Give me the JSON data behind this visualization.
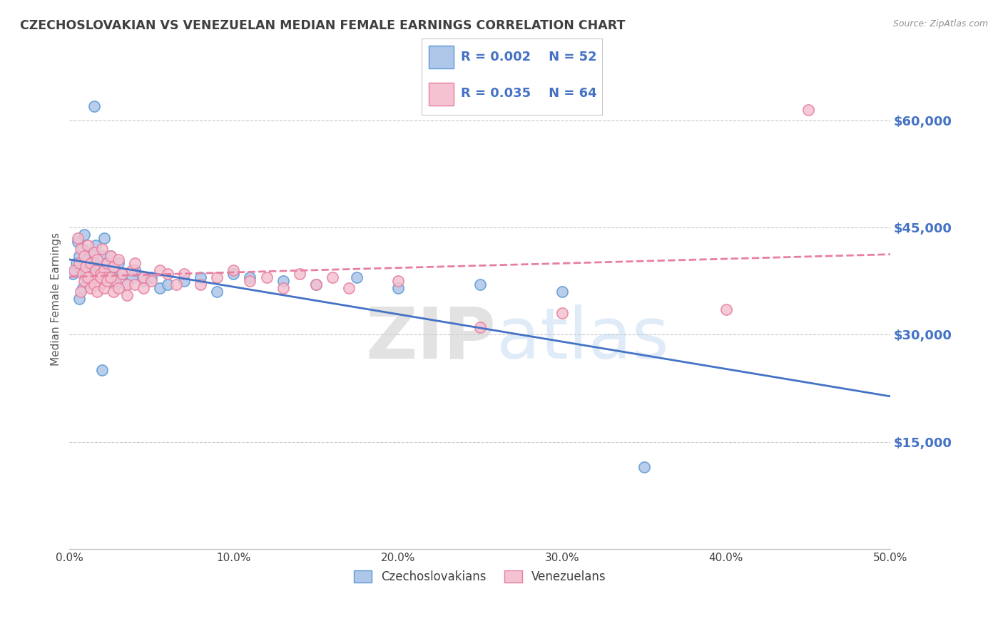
{
  "title": "CZECHOSLOVAKIAN VS VENEZUELAN MEDIAN FEMALE EARNINGS CORRELATION CHART",
  "source_text": "Source: ZipAtlas.com",
  "ylabel": "Median Female Earnings",
  "xlim": [
    0.0,
    0.5
  ],
  "ylim": [
    0,
    70000
  ],
  "yticks": [
    0,
    15000,
    30000,
    45000,
    60000
  ],
  "ytick_labels": [
    "",
    "$15,000",
    "$30,000",
    "$45,000",
    "$60,000"
  ],
  "xtick_labels": [
    "0.0%",
    "10.0%",
    "20.0%",
    "30.0%",
    "40.0%",
    "50.0%"
  ],
  "xticks": [
    0.0,
    0.1,
    0.2,
    0.3,
    0.4,
    0.5
  ],
  "blue_color": "#AEC6E8",
  "blue_edge_color": "#5B9BD5",
  "pink_color": "#F4C2D0",
  "pink_edge_color": "#E87FA0",
  "blue_line_color": "#4472C4",
  "pink_line_color": "#E87FA0",
  "legend_text_color": "#4472C4",
  "title_color": "#404040",
  "axis_label_color": "#595959",
  "tick_color": "#4472C4",
  "watermark_zip": "ZIP",
  "watermark_atlas": "atlas",
  "R_blue": 0.002,
  "N_blue": 52,
  "R_pink": 0.035,
  "N_pink": 64,
  "blue_scatter_x": [
    0.002,
    0.004,
    0.005,
    0.006,
    0.007,
    0.008,
    0.009,
    0.01,
    0.011,
    0.012,
    0.013,
    0.014,
    0.015,
    0.016,
    0.017,
    0.018,
    0.019,
    0.02,
    0.021,
    0.022,
    0.023,
    0.024,
    0.025,
    0.027,
    0.028,
    0.03,
    0.032,
    0.035,
    0.038,
    0.04,
    0.045,
    0.05,
    0.055,
    0.06,
    0.07,
    0.08,
    0.09,
    0.1,
    0.11,
    0.13,
    0.15,
    0.175,
    0.2,
    0.25,
    0.3,
    0.35,
    0.006,
    0.008,
    0.01,
    0.012,
    0.015,
    0.02
  ],
  "blue_scatter_y": [
    38500,
    40000,
    43000,
    41000,
    39000,
    42000,
    44000,
    38000,
    40500,
    37500,
    39000,
    41500,
    40000,
    42500,
    38000,
    39500,
    37000,
    41000,
    43500,
    38500,
    40000,
    39000,
    41000,
    38000,
    37000,
    40000,
    38500,
    37000,
    38000,
    39000,
    37500,
    38000,
    36500,
    37000,
    37500,
    38000,
    36000,
    38500,
    38000,
    37500,
    37000,
    38000,
    36500,
    37000,
    36000,
    11500,
    35000,
    36500,
    38500,
    39500,
    62000,
    25000
  ],
  "pink_scatter_x": [
    0.003,
    0.005,
    0.006,
    0.007,
    0.008,
    0.009,
    0.01,
    0.011,
    0.012,
    0.013,
    0.014,
    0.015,
    0.016,
    0.017,
    0.018,
    0.019,
    0.02,
    0.021,
    0.022,
    0.023,
    0.025,
    0.027,
    0.028,
    0.03,
    0.032,
    0.035,
    0.038,
    0.04,
    0.045,
    0.05,
    0.055,
    0.06,
    0.065,
    0.07,
    0.08,
    0.09,
    0.1,
    0.11,
    0.12,
    0.13,
    0.14,
    0.15,
    0.16,
    0.17,
    0.2,
    0.25,
    0.3,
    0.4,
    0.45,
    0.007,
    0.009,
    0.011,
    0.013,
    0.015,
    0.017,
    0.019,
    0.021,
    0.023,
    0.025,
    0.027,
    0.03,
    0.035,
    0.04,
    0.045
  ],
  "pink_scatter_y": [
    39000,
    43500,
    40000,
    42000,
    38500,
    41000,
    39500,
    42500,
    37500,
    40000,
    38000,
    41500,
    39000,
    40500,
    37000,
    38500,
    42000,
    39000,
    38000,
    40000,
    41000,
    39500,
    37500,
    40500,
    38500,
    37000,
    39000,
    40000,
    38000,
    37500,
    39000,
    38500,
    37000,
    38500,
    37000,
    38000,
    39000,
    37500,
    38000,
    36500,
    38500,
    37000,
    38000,
    36500,
    37500,
    31000,
    33000,
    33500,
    61500,
    36000,
    37500,
    38000,
    36500,
    37000,
    36000,
    38000,
    36500,
    37500,
    38000,
    36000,
    36500,
    35500,
    37000,
    36500
  ]
}
